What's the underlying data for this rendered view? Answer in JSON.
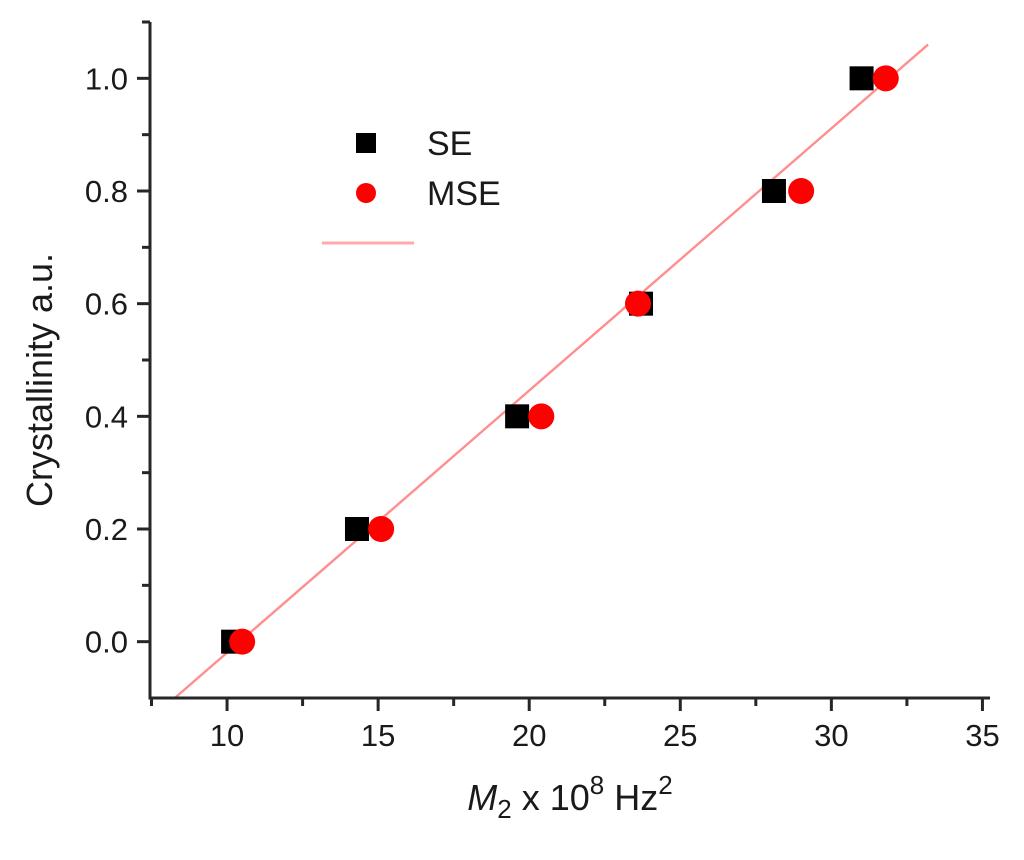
{
  "chart_data": {
    "type": "scatter",
    "title": "",
    "ylabel": "Crystallinity a.u.",
    "xlabel_plain": "M2 x 10^8 Hz^2",
    "xlabel_parts": {
      "var": "M",
      "var_sub": "2",
      "times": " x 10",
      "exp": "8",
      "unit": " Hz",
      "unit_exp": "2"
    },
    "xlim": [
      7.45,
      35.25
    ],
    "ylim": [
      -0.1,
      1.1
    ],
    "x_major_ticks": [
      10,
      15,
      20,
      25,
      30,
      35
    ],
    "x_tick_labels": [
      "10",
      "15",
      "20",
      "25",
      "30",
      "35"
    ],
    "x_minor_ticks": [
      7.5,
      12.5,
      17.5,
      22.5,
      27.5,
      32.5
    ],
    "y_major_ticks": [
      0.0,
      0.2,
      0.4,
      0.6,
      0.8,
      1.0
    ],
    "y_tick_labels": [
      "0.0",
      "0.2",
      "0.4",
      "0.6",
      "0.8",
      "1.0"
    ],
    "y_minor_ticks": [
      0.1,
      0.3,
      0.5,
      0.7,
      0.9,
      1.1
    ],
    "grid": false,
    "legend_position": "upper-left-inside",
    "series": [
      {
        "name": "SE",
        "marker": "square",
        "color": "#000000",
        "points": [
          [
            10.2,
            0.0
          ],
          [
            14.3,
            0.2
          ],
          [
            19.6,
            0.4
          ],
          [
            23.7,
            0.6
          ],
          [
            28.1,
            0.8
          ],
          [
            31.0,
            1.0
          ]
        ]
      },
      {
        "name": "MSE",
        "marker": "circle",
        "color": "#ff0000",
        "points": [
          [
            10.5,
            0.0
          ],
          [
            15.1,
            0.2
          ],
          [
            20.4,
            0.4
          ],
          [
            23.6,
            0.6
          ],
          [
            29.0,
            0.8
          ],
          [
            31.8,
            1.0
          ]
        ]
      }
    ],
    "fit_line": {
      "color": "#ff8f8f",
      "x1": 8.27,
      "y1": -0.1,
      "x2": 33.2,
      "y2": 1.06,
      "slope": 0.0465,
      "x_intercept": 10.42
    },
    "legend": [
      {
        "label": "SE",
        "marker": "square",
        "color": "#000000"
      },
      {
        "label": "MSE",
        "marker": "circle",
        "color": "#ff0000"
      },
      {
        "label": "",
        "marker": "line",
        "color": "#ffaaaa"
      }
    ]
  },
  "colors": {
    "background": "#ffffff",
    "axis": "#262626",
    "text": "#1a1a1a",
    "se_marker": "#000000",
    "mse_marker": "#ff0000",
    "fit_line": "#ff8f8f",
    "legend_line": "#ffaaaa"
  }
}
